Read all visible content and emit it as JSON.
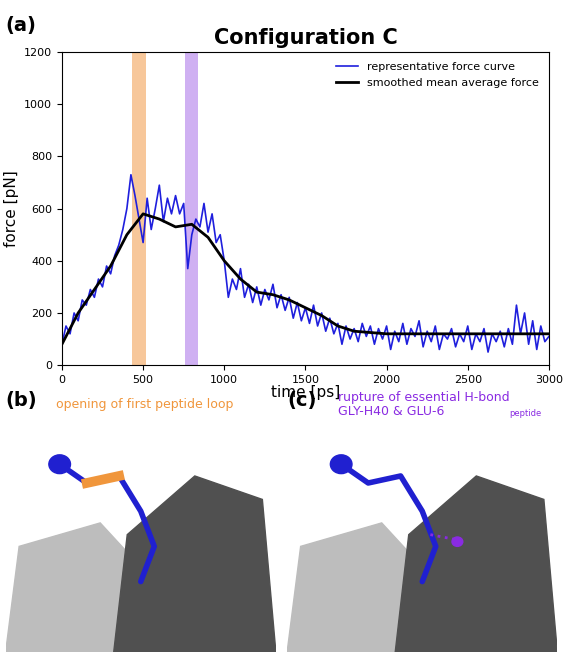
{
  "chart_data": {
    "type": "line",
    "panel_label": "(a)",
    "title": "Configuration C",
    "x_label": "time [ps]",
    "y_label": "force [pN]",
    "xlim": [
      0,
      3000
    ],
    "ylim": [
      0,
      1200
    ],
    "xticks": [
      0,
      500,
      1000,
      1500,
      2000,
      2500,
      3000
    ],
    "yticks": [
      0,
      200,
      400,
      600,
      800,
      1000,
      1200
    ],
    "legend": "upper right",
    "highlights": [
      {
        "start": 430,
        "end": 520,
        "color": "#f7c79a"
      },
      {
        "start": 760,
        "end": 840,
        "color": "#cfb0f2"
      }
    ],
    "series": [
      {
        "name": "representative force curve",
        "color": "#1f1fdd",
        "x": [
          0,
          25,
          50,
          75,
          100,
          125,
          150,
          175,
          200,
          225,
          250,
          275,
          300,
          325,
          350,
          375,
          400,
          425,
          450,
          475,
          500,
          525,
          550,
          575,
          600,
          625,
          650,
          675,
          700,
          725,
          750,
          775,
          800,
          825,
          850,
          875,
          900,
          925,
          950,
          975,
          1000,
          1025,
          1050,
          1075,
          1100,
          1125,
          1150,
          1175,
          1200,
          1225,
          1250,
          1275,
          1300,
          1325,
          1350,
          1375,
          1400,
          1425,
          1450,
          1475,
          1500,
          1525,
          1550,
          1575,
          1600,
          1625,
          1650,
          1675,
          1700,
          1725,
          1750,
          1775,
          1800,
          1825,
          1850,
          1875,
          1900,
          1925,
          1950,
          1975,
          2000,
          2025,
          2050,
          2075,
          2100,
          2125,
          2150,
          2175,
          2200,
          2225,
          2250,
          2275,
          2300,
          2325,
          2350,
          2375,
          2400,
          2425,
          2450,
          2475,
          2500,
          2525,
          2550,
          2575,
          2600,
          2625,
          2650,
          2675,
          2700,
          2725,
          2750,
          2775,
          2800,
          2825,
          2850,
          2875,
          2900,
          2925,
          2950,
          2975,
          3000
        ],
        "values": [
          80,
          150,
          120,
          200,
          170,
          250,
          230,
          290,
          260,
          330,
          300,
          380,
          350,
          420,
          460,
          520,
          600,
          730,
          650,
          560,
          470,
          640,
          520,
          600,
          690,
          550,
          640,
          580,
          650,
          580,
          620,
          370,
          500,
          560,
          530,
          620,
          510,
          580,
          470,
          500,
          400,
          260,
          330,
          290,
          370,
          260,
          310,
          240,
          300,
          230,
          290,
          250,
          310,
          220,
          270,
          210,
          260,
          180,
          240,
          170,
          220,
          160,
          230,
          150,
          200,
          130,
          180,
          120,
          160,
          80,
          150,
          100,
          140,
          90,
          160,
          110,
          150,
          80,
          140,
          100,
          150,
          60,
          130,
          90,
          160,
          80,
          140,
          110,
          170,
          70,
          130,
          90,
          150,
          60,
          120,
          100,
          140,
          70,
          120,
          90,
          150,
          60,
          120,
          90,
          140,
          50,
          120,
          90,
          130,
          70,
          140,
          80,
          230,
          120,
          200,
          80,
          170,
          60,
          150,
          90,
          110
        ]
      },
      {
        "name": "smoothed mean average force",
        "color": "#000000",
        "x": [
          0,
          100,
          200,
          300,
          400,
          500,
          600,
          700,
          800,
          900,
          1000,
          1100,
          1200,
          1300,
          1400,
          1500,
          1600,
          1700,
          1800,
          1900,
          2000,
          2200,
          2400,
          2600,
          2800,
          3000
        ],
        "values": [
          80,
          200,
          290,
          380,
          500,
          580,
          560,
          530,
          540,
          490,
          400,
          330,
          280,
          270,
          250,
          220,
          190,
          150,
          130,
          125,
          120,
          120,
          120,
          120,
          120,
          120
        ]
      }
    ]
  },
  "panels": [
    {
      "label": "(b)",
      "lines": [
        "opening of first peptide loop"
      ],
      "color": "#f0963c"
    },
    {
      "label": "(c)",
      "lines": [
        "rupture of essential H-bond",
        "GLY-H40 & GLU-6"
      ],
      "subscript": "peptide",
      "color": "#8a2be2"
    }
  ]
}
